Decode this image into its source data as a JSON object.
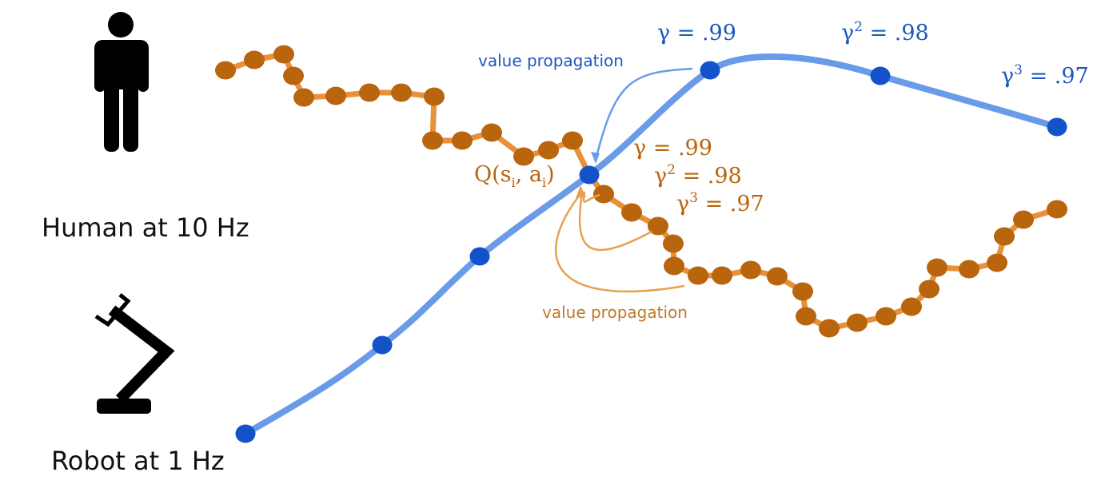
{
  "labels": {
    "human": "Human at 10 Hz",
    "robot": "Robot at 1 Hz",
    "robot_value_propagation": "value propagation",
    "human_value_propagation": "value propagation",
    "q_value": {
      "prefix": "Q(s",
      "sub1": "i",
      "mid": ", a",
      "sub2": "i",
      "suffix": ")"
    }
  },
  "robot_discounts": [
    {
      "symbol": "γ",
      "power": "",
      "value": "= .99"
    },
    {
      "symbol": "γ",
      "power": "2",
      "value": "= .98"
    },
    {
      "symbol": "γ",
      "power": "3",
      "value": "= .97"
    }
  ],
  "human_discounts": [
    {
      "symbol": "γ",
      "power": "",
      "value": "= .99"
    },
    {
      "symbol": "γ",
      "power": "2",
      "value": "= .98"
    },
    {
      "symbol": "γ",
      "power": "3",
      "value": "= .97"
    }
  ],
  "icons": [
    "human-figure-icon",
    "robot-arm-icon"
  ],
  "colors": {
    "robot_line": "#6a9be8",
    "robot_dot": "#1452c9",
    "robot_text": "#1e57c0",
    "human_line": "#e8913b",
    "human_dot": "#b8650e",
    "human_text": "#c07a2a",
    "human_arrow": "#e8a050",
    "icon": "#000000"
  }
}
